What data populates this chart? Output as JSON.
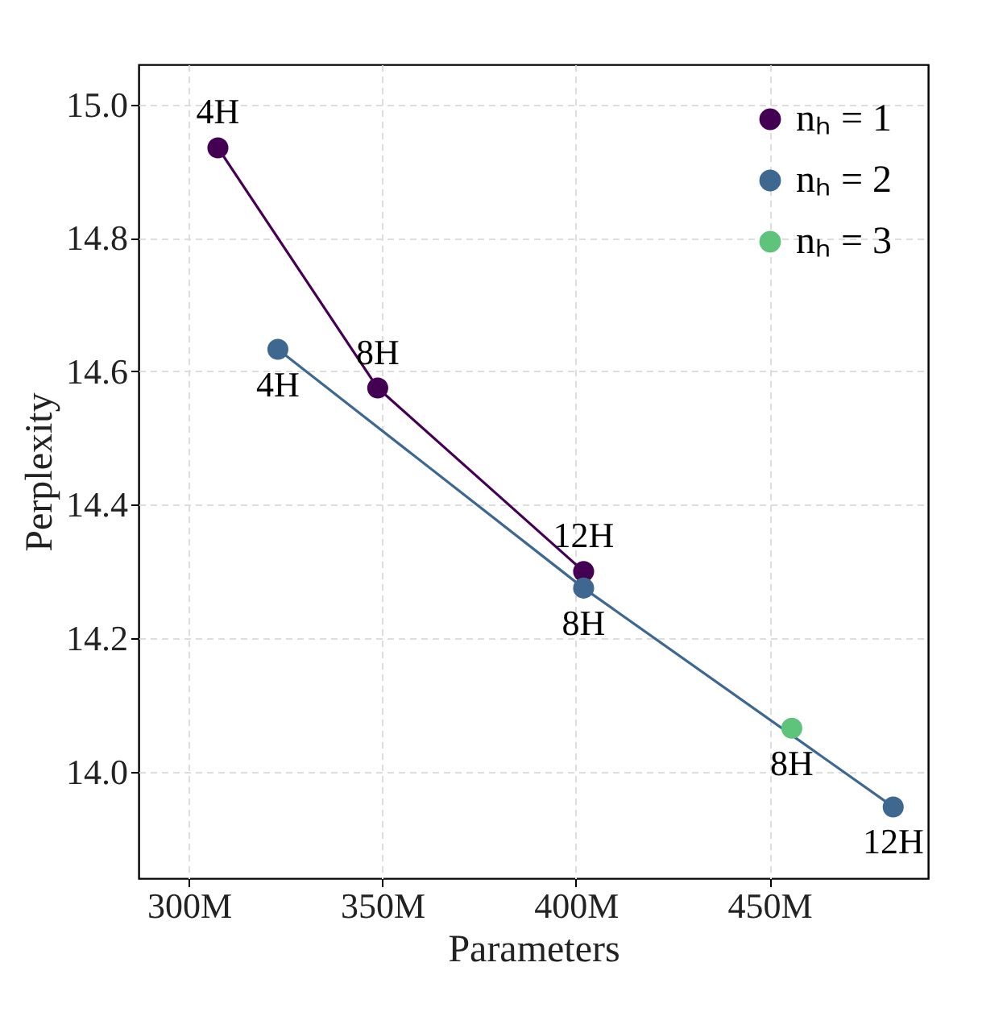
{
  "chart_data": {
    "type": "line",
    "xlabel": "Parameters",
    "ylabel": "Perplexity",
    "xlim": [
      287,
      491
    ],
    "ylim": [
      13.84,
      15.06
    ],
    "xticks": [
      {
        "value": 300,
        "label": "300M"
      },
      {
        "value": 350,
        "label": "350M"
      },
      {
        "value": 400,
        "label": "400M"
      },
      {
        "value": 450,
        "label": "450M"
      }
    ],
    "yticks": [
      {
        "value": 14,
        "label": "14.0"
      },
      14.2,
      14.4,
      14.6,
      14.8,
      {
        "value": 15,
        "label": "15.0"
      }
    ],
    "series": [
      {
        "name": "nₕ = 1",
        "color": "#440154",
        "x": [
          307.5,
          348.8,
          402
        ],
        "values": [
          14.935,
          14.575,
          14.3
        ]
      },
      {
        "name": "nₕ = 2",
        "color": "#3e6890",
        "x": [
          323,
          402,
          482
        ],
        "values": [
          14.633,
          14.275,
          13.947
        ]
      },
      {
        "name": "nₕ = 3",
        "color": "#5ec47c",
        "x": [
          455.8
        ],
        "values": [
          14.065
        ]
      }
    ],
    "annotations": [
      {
        "text": "4H",
        "x": 307.5,
        "y": 14.935
      },
      {
        "text": "8H",
        "x": 348.8,
        "y": 14.575
      },
      {
        "text": "12H",
        "x": 402,
        "y": 14.3
      },
      {
        "text": "4H",
        "x": 323,
        "y": 14.633
      },
      {
        "text": "8H",
        "x": 402,
        "y": 14.275
      },
      {
        "text": "12H",
        "x": 482,
        "y": 13.947
      },
      {
        "text": "8H",
        "x": 455.8,
        "y": 14.065
      }
    ],
    "grid": true,
    "legend": "top right",
    "marker": "circle",
    "line_style": "solid"
  }
}
